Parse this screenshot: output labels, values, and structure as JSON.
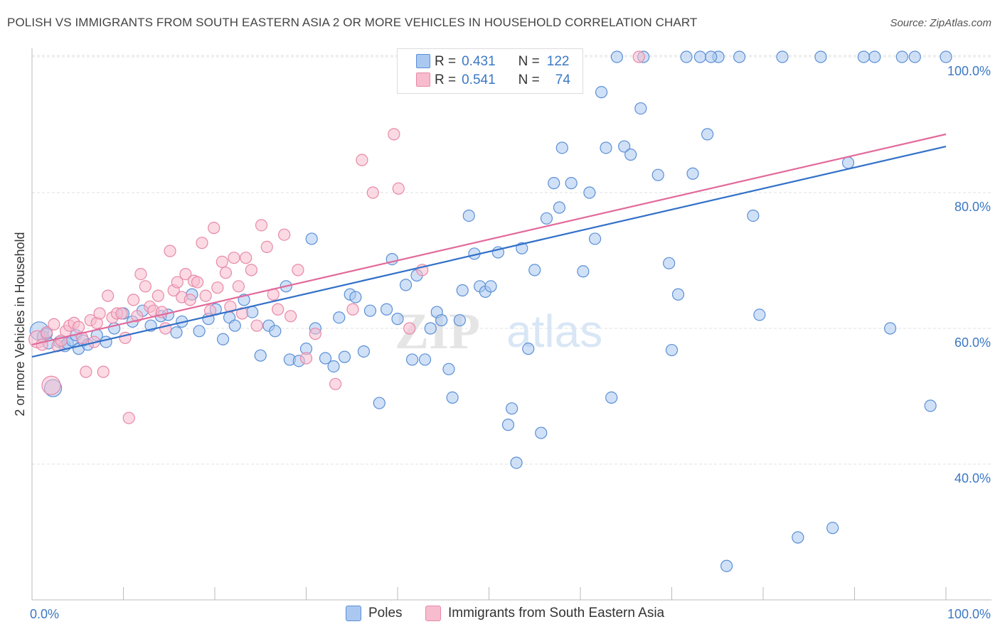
{
  "title": "POLISH VS IMMIGRANTS FROM SOUTH EASTERN ASIA 2 OR MORE VEHICLES IN HOUSEHOLD CORRELATION CHART",
  "source": "Source: ZipAtlas.com",
  "watermark": {
    "zip": "ZIP",
    "atlas": "atlas"
  },
  "legend": {
    "rows": [
      {
        "r_label": "R =",
        "r_value": "0.431",
        "n_label": "N =",
        "n_value": "122"
      },
      {
        "r_label": "R =",
        "r_value": "0.541",
        "n_label": "N =",
        "n_value": "74"
      }
    ]
  },
  "bottom_legend": {
    "poles": "Poles",
    "immigrants": "Immigrants from South Eastern Asia"
  },
  "colors": {
    "poles_fill": "#aac8f0",
    "poles_stroke": "#5b8fd6",
    "poles_line": "#3170c8",
    "imm_fill": "#f7bccd",
    "imm_stroke": "#e889a8",
    "imm_line": "#e2699a",
    "tick_label": "#3b78c4",
    "grid": "#e2e2e2"
  },
  "chart_data": {
    "type": "scatter",
    "title": "POLISH VS IMMIGRANTS FROM SOUTH EASTERN ASIA 2 OR MORE VEHICLES IN HOUSEHOLD CORRELATION CHART",
    "xlabel": "",
    "ylabel": "2 or more Vehicles in Household",
    "xlim": [
      0,
      100
    ],
    "ylim": [
      22,
      101
    ],
    "x_tick_labels": [
      "0.0%",
      "100.0%"
    ],
    "y_ticks": [
      40,
      60,
      80,
      100
    ],
    "y_tick_labels": [
      "40.0%",
      "60.0%",
      "80.0%",
      "100.0%"
    ],
    "grid": true,
    "series": [
      {
        "name": "Poles",
        "r": 0.431,
        "n": 122,
        "trend": {
          "x": [
            0,
            100
          ],
          "y": [
            55.8,
            86.8
          ]
        },
        "points": [
          [
            0.8,
            59.6
          ],
          [
            1.2,
            58.8
          ],
          [
            1.6,
            59.2
          ],
          [
            1.8,
            57.8
          ],
          [
            2.3,
            51.2
          ],
          [
            3.0,
            58.0
          ],
          [
            3.6,
            57.4
          ],
          [
            3.9,
            57.8
          ],
          [
            4.4,
            58.2
          ],
          [
            4.8,
            59.0
          ],
          [
            5.1,
            57.0
          ],
          [
            5.6,
            58.2
          ],
          [
            6.1,
            57.6
          ],
          [
            7.1,
            59.0
          ],
          [
            8.1,
            58.0
          ],
          [
            9.0,
            60.0
          ],
          [
            10.0,
            62.2
          ],
          [
            11.0,
            61.0
          ],
          [
            12.1,
            62.6
          ],
          [
            13.0,
            60.4
          ],
          [
            14.1,
            61.8
          ],
          [
            14.9,
            62.0
          ],
          [
            15.8,
            59.4
          ],
          [
            16.4,
            61.0
          ],
          [
            17.5,
            65.0
          ],
          [
            18.3,
            59.6
          ],
          [
            19.3,
            61.4
          ],
          [
            20.1,
            62.8
          ],
          [
            20.9,
            58.4
          ],
          [
            21.6,
            61.6
          ],
          [
            22.2,
            60.4
          ],
          [
            23.2,
            64.2
          ],
          [
            24.1,
            62.4
          ],
          [
            25.0,
            56.0
          ],
          [
            25.9,
            60.4
          ],
          [
            26.6,
            59.6
          ],
          [
            27.8,
            66.2
          ],
          [
            28.2,
            55.4
          ],
          [
            29.2,
            55.2
          ],
          [
            30.0,
            57.0
          ],
          [
            30.6,
            73.2
          ],
          [
            31.0,
            60.0
          ],
          [
            32.1,
            55.6
          ],
          [
            33.0,
            54.4
          ],
          [
            33.6,
            61.6
          ],
          [
            34.2,
            55.8
          ],
          [
            34.8,
            65.0
          ],
          [
            35.4,
            64.6
          ],
          [
            36.3,
            56.6
          ],
          [
            37.0,
            62.6
          ],
          [
            38.0,
            49.0
          ],
          [
            38.8,
            62.8
          ],
          [
            39.4,
            70.2
          ],
          [
            40.0,
            61.4
          ],
          [
            40.9,
            66.4
          ],
          [
            41.6,
            55.4
          ],
          [
            42.1,
            67.8
          ],
          [
            43.0,
            55.4
          ],
          [
            43.6,
            60.0
          ],
          [
            44.3,
            62.4
          ],
          [
            44.8,
            61.2
          ],
          [
            45.6,
            54.0
          ],
          [
            46.0,
            49.8
          ],
          [
            46.8,
            61.2
          ],
          [
            47.1,
            65.6
          ],
          [
            47.8,
            76.6
          ],
          [
            48.4,
            71.0
          ],
          [
            49.0,
            66.2
          ],
          [
            49.6,
            65.4
          ],
          [
            50.2,
            66.2
          ],
          [
            51.0,
            71.2
          ],
          [
            52.1,
            45.8
          ],
          [
            52.5,
            48.2
          ],
          [
            53.0,
            40.2
          ],
          [
            53.6,
            71.8
          ],
          [
            54.3,
            57.0
          ],
          [
            55.0,
            68.6
          ],
          [
            55.7,
            44.6
          ],
          [
            56.3,
            76.2
          ],
          [
            57.1,
            81.4
          ],
          [
            57.7,
            77.8
          ],
          [
            58.0,
            86.6
          ],
          [
            59.0,
            81.4
          ],
          [
            60.3,
            68.4
          ],
          [
            61.0,
            80.0
          ],
          [
            61.6,
            73.2
          ],
          [
            62.3,
            94.8
          ],
          [
            62.8,
            86.6
          ],
          [
            63.4,
            49.8
          ],
          [
            64.0,
            100.0
          ],
          [
            64.8,
            86.8
          ],
          [
            65.5,
            85.6
          ],
          [
            66.6,
            92.4
          ],
          [
            66.9,
            100.0
          ],
          [
            68.5,
            82.6
          ],
          [
            69.7,
            69.6
          ],
          [
            70.0,
            56.8
          ],
          [
            70.7,
            65.0
          ],
          [
            71.6,
            100.0
          ],
          [
            72.3,
            82.8
          ],
          [
            73.1,
            100.0
          ],
          [
            73.9,
            88.6
          ],
          [
            75.1,
            100.0
          ],
          [
            76.0,
            25.0
          ],
          [
            77.4,
            100.0
          ],
          [
            78.9,
            76.6
          ],
          [
            79.6,
            62.0
          ],
          [
            82.1,
            100.0
          ],
          [
            83.8,
            29.2
          ],
          [
            86.3,
            100.0
          ],
          [
            87.6,
            30.6
          ],
          [
            89.3,
            84.4
          ],
          [
            92.2,
            100.0
          ],
          [
            93.9,
            60.0
          ],
          [
            96.6,
            100.0
          ],
          [
            100.0,
            100.0
          ],
          [
            98.3,
            48.6
          ],
          [
            91.0,
            100.0
          ],
          [
            95.2,
            100.0
          ],
          [
            74.3,
            100.0
          ]
        ]
      },
      {
        "name": "Immigrants from South Eastern Asia",
        "r": 0.541,
        "n": 74,
        "trend": {
          "x": [
            0,
            100
          ],
          "y": [
            57.6,
            88.6
          ]
        },
        "points": [
          [
            0.6,
            58.4
          ],
          [
            1.1,
            57.6
          ],
          [
            1.6,
            59.4
          ],
          [
            2.1,
            51.6
          ],
          [
            2.4,
            60.6
          ],
          [
            2.8,
            57.4
          ],
          [
            3.2,
            58.2
          ],
          [
            3.7,
            59.6
          ],
          [
            4.1,
            60.4
          ],
          [
            4.6,
            60.8
          ],
          [
            5.1,
            60.2
          ],
          [
            5.5,
            58.6
          ],
          [
            5.9,
            53.6
          ],
          [
            6.4,
            61.2
          ],
          [
            6.8,
            58.0
          ],
          [
            7.1,
            60.8
          ],
          [
            7.4,
            62.2
          ],
          [
            7.8,
            53.6
          ],
          [
            8.3,
            64.8
          ],
          [
            8.8,
            61.6
          ],
          [
            9.3,
            62.2
          ],
          [
            9.8,
            62.2
          ],
          [
            10.2,
            58.6
          ],
          [
            10.6,
            46.8
          ],
          [
            11.1,
            64.2
          ],
          [
            11.5,
            61.8
          ],
          [
            11.9,
            68.0
          ],
          [
            12.4,
            66.2
          ],
          [
            12.9,
            63.2
          ],
          [
            13.3,
            62.6
          ],
          [
            13.8,
            64.8
          ],
          [
            14.2,
            62.4
          ],
          [
            14.6,
            60.0
          ],
          [
            15.1,
            71.4
          ],
          [
            15.5,
            65.6
          ],
          [
            15.9,
            66.8
          ],
          [
            16.4,
            64.6
          ],
          [
            16.8,
            68.0
          ],
          [
            17.3,
            64.2
          ],
          [
            17.7,
            67.0
          ],
          [
            18.1,
            66.8
          ],
          [
            18.6,
            72.6
          ],
          [
            19.0,
            64.8
          ],
          [
            19.5,
            62.6
          ],
          [
            19.9,
            74.8
          ],
          [
            20.3,
            66.0
          ],
          [
            20.8,
            69.8
          ],
          [
            21.2,
            68.2
          ],
          [
            21.7,
            63.2
          ],
          [
            22.1,
            70.4
          ],
          [
            22.6,
            66.2
          ],
          [
            23.0,
            62.2
          ],
          [
            23.4,
            70.4
          ],
          [
            24.0,
            68.6
          ],
          [
            24.6,
            60.4
          ],
          [
            25.1,
            75.2
          ],
          [
            25.7,
            72.0
          ],
          [
            26.4,
            65.0
          ],
          [
            26.9,
            62.8
          ],
          [
            27.6,
            73.8
          ],
          [
            28.3,
            61.8
          ],
          [
            29.1,
            68.6
          ],
          [
            30.0,
            55.6
          ],
          [
            31.0,
            59.2
          ],
          [
            33.2,
            51.8
          ],
          [
            35.1,
            62.8
          ],
          [
            36.1,
            84.8
          ],
          [
            37.3,
            80.0
          ],
          [
            39.6,
            88.6
          ],
          [
            40.1,
            80.6
          ],
          [
            41.3,
            60.0
          ],
          [
            42.7,
            68.6
          ],
          [
            53.3,
            100.0
          ],
          [
            66.4,
            100.0
          ]
        ]
      }
    ]
  }
}
